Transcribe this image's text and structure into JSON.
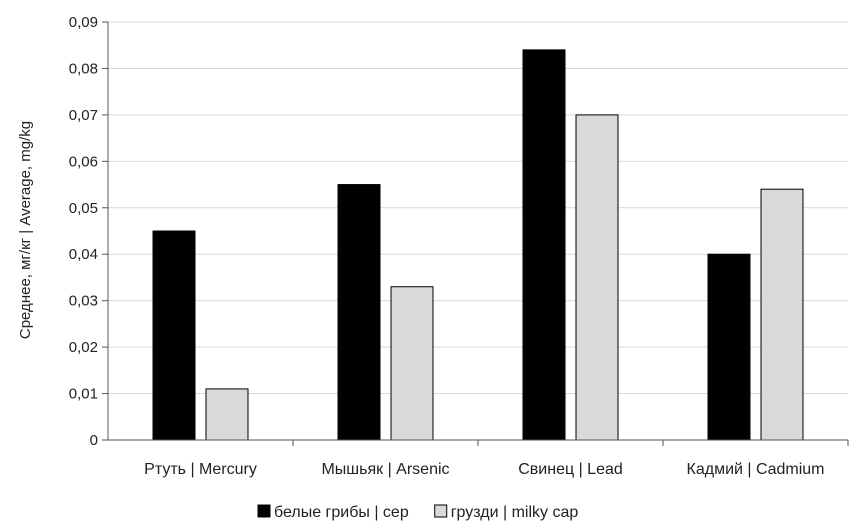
{
  "chart_data": {
    "type": "bar",
    "categories": [
      "Ртуть | Mercury",
      "Мышьяк | Arsenic",
      "Свинец | Lead",
      "Кадмий | Cadmium"
    ],
    "series": [
      {
        "name": "белые грибы | cep",
        "values": [
          0.045,
          0.055,
          0.084,
          0.04
        ],
        "color": "#000000"
      },
      {
        "name": "грузди | milky cap",
        "values": [
          0.011,
          0.033,
          0.07,
          0.054
        ],
        "color": "#d9d9d9"
      }
    ],
    "ylabel": "Среднее, мг/кг | Average, mg/kg",
    "xlabel": "",
    "ylim": [
      0,
      0.09
    ],
    "yticks": [
      "0",
      "0,01",
      "0,02",
      "0,03",
      "0,04",
      "0,05",
      "0,06",
      "0,07",
      "0,08",
      "0,09"
    ],
    "grid": true,
    "legend_position": "bottom"
  }
}
